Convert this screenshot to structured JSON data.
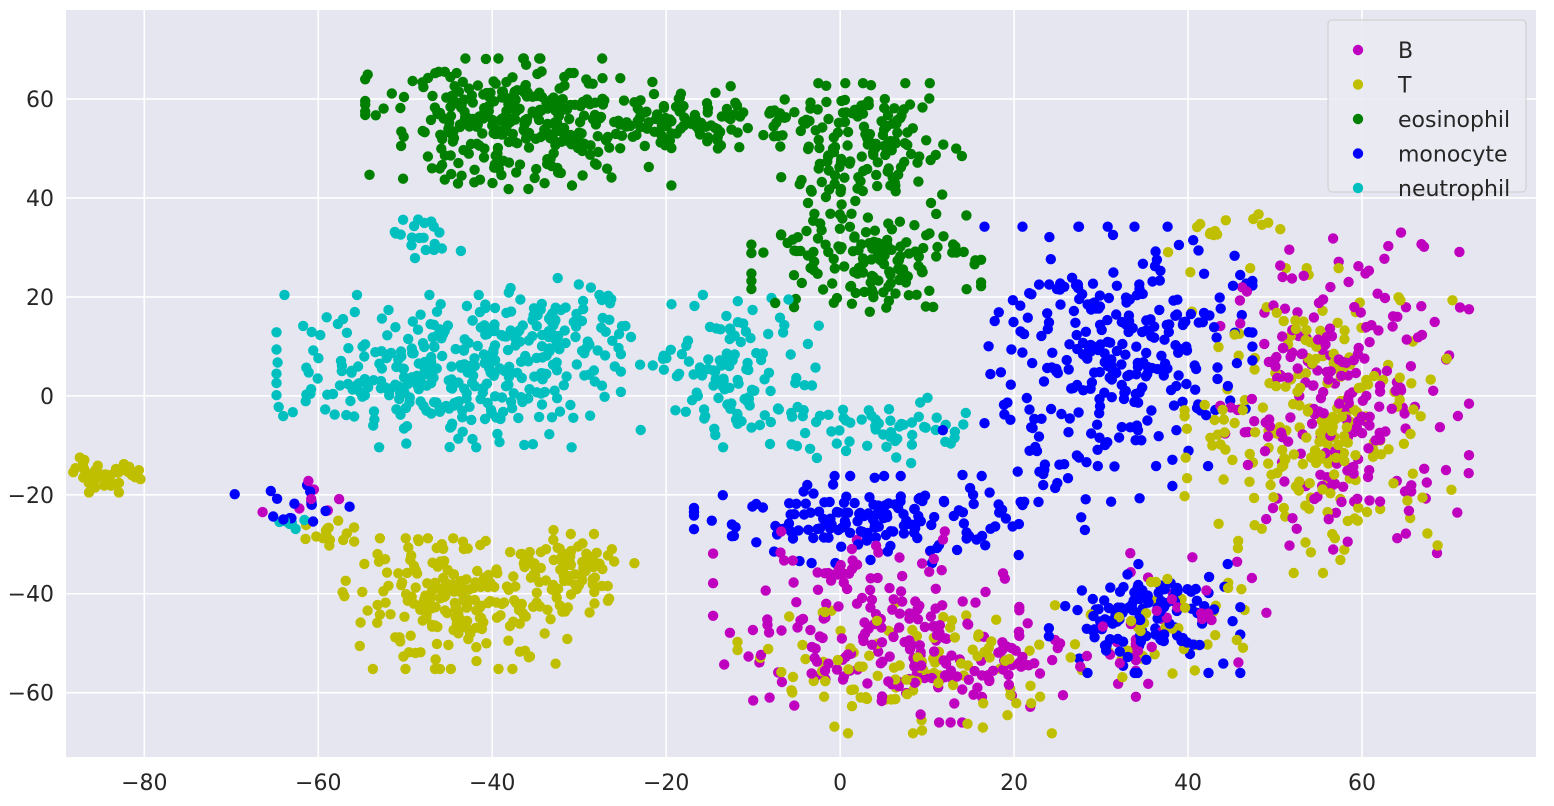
{
  "chart_data": {
    "type": "scatter",
    "title": "",
    "xlabel": "",
    "ylabel": "",
    "xlim": [
      -89,
      80
    ],
    "ylim": [
      -73,
      78
    ],
    "x_ticks": [
      -80,
      -60,
      -40,
      -20,
      0,
      20,
      40,
      60
    ],
    "y_ticks": [
      -60,
      -40,
      -20,
      0,
      20,
      40,
      60
    ],
    "x_tick_labels": [
      "−80",
      "−60",
      "−40",
      "−20",
      "0",
      "20",
      "40",
      "60"
    ],
    "y_tick_labels": [
      "−60",
      "−40",
      "−20",
      "0",
      "20",
      "40",
      "60"
    ],
    "grid": true,
    "background": "#e6e6f0",
    "legend_position": "top-right",
    "series": [
      {
        "name": "B",
        "color": "#bf00bf",
        "clusters": [
          {
            "cx": 58,
            "cy": 0,
            "sx": 6.5,
            "sy": 15,
            "n": 230
          },
          {
            "cx": 3,
            "cy": -45,
            "sx": 8,
            "sy": 8,
            "n": 150
          },
          {
            "cx": 12,
            "cy": -55,
            "sx": 10,
            "sy": 5,
            "n": 90
          },
          {
            "cx": 38,
            "cy": -45,
            "sx": 5,
            "sy": 6,
            "n": 30
          },
          {
            "cx": -62,
            "cy": -21,
            "sx": 2,
            "sy": 2,
            "n": 8
          }
        ]
      },
      {
        "name": "T",
        "color": "#bfbf00",
        "clusters": [
          {
            "cx": -84,
            "cy": -16,
            "sx": 2,
            "sy": 1.6,
            "n": 45
          },
          {
            "cx": -44,
            "cy": -42,
            "sx": 6,
            "sy": 6,
            "n": 220
          },
          {
            "cx": -30,
            "cy": -35,
            "sx": 3,
            "sy": 4,
            "n": 70
          },
          {
            "cx": -58,
            "cy": -28,
            "sx": 2,
            "sy": 2,
            "n": 15
          },
          {
            "cx": 55,
            "cy": -5,
            "sx": 7,
            "sy": 14,
            "n": 220
          },
          {
            "cx": 8,
            "cy": -55,
            "sx": 9,
            "sy": 6,
            "n": 110
          },
          {
            "cx": 38,
            "cy": -48,
            "sx": 5,
            "sy": 5,
            "n": 40
          },
          {
            "cx": 44,
            "cy": 33,
            "sx": 3,
            "sy": 2,
            "n": 15
          }
        ]
      },
      {
        "name": "eosinophil",
        "color": "#007f00",
        "clusters": [
          {
            "cx": -37,
            "cy": 55,
            "sx": 8,
            "sy": 6,
            "n": 320
          },
          {
            "cx": -15,
            "cy": 56,
            "sx": 6,
            "sy": 3,
            "n": 90
          },
          {
            "cx": 3,
            "cy": 50,
            "sx": 5,
            "sy": 6,
            "n": 150
          },
          {
            "cx": 3,
            "cy": 28,
            "sx": 6,
            "sy": 5,
            "n": 150
          }
        ]
      },
      {
        "name": "monocyte",
        "color": "#0000ff",
        "clusters": [
          {
            "cx": 32,
            "cy": 10,
            "sx": 7,
            "sy": 11,
            "n": 260
          },
          {
            "cx": 3,
            "cy": -25,
            "sx": 9,
            "sy": 4,
            "n": 160
          },
          {
            "cx": 35,
            "cy": -45,
            "sx": 5,
            "sy": 5,
            "n": 130
          },
          {
            "cx": -63,
            "cy": -22,
            "sx": 3,
            "sy": 2,
            "n": 15
          },
          {
            "cx": 25,
            "cy": -15,
            "sx": 6,
            "sy": 6,
            "n": 40
          }
        ]
      },
      {
        "name": "neutrophil",
        "color": "#00bfbf",
        "clusters": [
          {
            "cx": -45,
            "cy": 5,
            "sx": 9,
            "sy": 7,
            "n": 320
          },
          {
            "cx": -32,
            "cy": 15,
            "sx": 4,
            "sy": 4,
            "n": 60
          },
          {
            "cx": -12,
            "cy": 5,
            "sx": 5,
            "sy": 7,
            "n": 120
          },
          {
            "cx": 5,
            "cy": -7,
            "sx": 6,
            "sy": 3,
            "n": 60
          },
          {
            "cx": -48,
            "cy": 32,
            "sx": 2,
            "sy": 2,
            "n": 20
          },
          {
            "cx": -63,
            "cy": -26,
            "sx": 1.2,
            "sy": 0.8,
            "n": 6
          }
        ]
      }
    ]
  }
}
